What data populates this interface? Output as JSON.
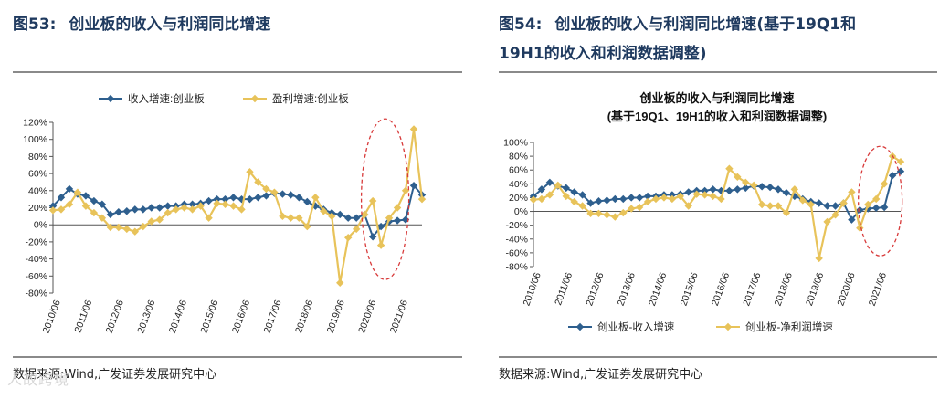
{
  "left": {
    "fig_label": "图53:",
    "fig_title": "创业板的收入与利润同比增速",
    "source": "数据来源:Wind,广发证券发展研究中心"
  },
  "right": {
    "fig_label": "图54:",
    "fig_title_line1": "创业板的收入与利润同比增速(基于19Q1和",
    "fig_title_line2": "19H1的收入和利润数据调整)",
    "source": "数据来源:Wind,广发证券发展研究中心"
  },
  "watermark": "人故跨境",
  "colors": {
    "revenue": "#2e5f8e",
    "profit": "#e8c35a",
    "annotation": "#d83a3a"
  },
  "chart_data": [
    {
      "type": "line",
      "title": "",
      "legend": [
        "收入增速:创业板",
        "盈利增速:创业板"
      ],
      "x_labels": [
        "2010/06",
        "2011/06",
        "2012/06",
        "2013/06",
        "2014/06",
        "2015/06",
        "2016/06",
        "2017/06",
        "2018/06",
        "2019/06",
        "2020/06",
        "2021/06"
      ],
      "y_ticks": [
        "120%",
        "100%",
        "80%",
        "60%",
        "40%",
        "20%",
        "0%",
        "-20%",
        "-40%",
        "-60%",
        "-80%"
      ],
      "ylim": [
        -80,
        120
      ],
      "x_range": [
        0,
        45
      ],
      "series": [
        {
          "name": "收入增速:创业板",
          "x": [
            0,
            1,
            2,
            3,
            4,
            5,
            6,
            7,
            8,
            9,
            10,
            11,
            12,
            13,
            14,
            15,
            16,
            17,
            18,
            19,
            20,
            21,
            22,
            23,
            24,
            25,
            26,
            27,
            28,
            29,
            30,
            31,
            32,
            33,
            34,
            35,
            36,
            37,
            38,
            39,
            40,
            41,
            42,
            43,
            44,
            45
          ],
          "values": [
            22,
            32,
            42,
            36,
            34,
            28,
            24,
            12,
            15,
            16,
            18,
            18,
            20,
            20,
            22,
            22,
            24,
            24,
            25,
            28,
            30,
            30,
            32,
            30,
            30,
            32,
            34,
            37,
            36,
            35,
            32,
            27,
            22,
            18,
            14,
            12,
            8,
            8,
            12,
            -14,
            -2,
            4,
            5,
            6,
            46,
            35
          ]
        },
        {
          "name": "盈利增速:创业板",
          "x": [
            0,
            1,
            2,
            3,
            4,
            5,
            6,
            7,
            8,
            9,
            10,
            11,
            12,
            13,
            14,
            15,
            16,
            17,
            18,
            19,
            20,
            21,
            22,
            23,
            24,
            25,
            26,
            27,
            28,
            29,
            30,
            31,
            32,
            33,
            34,
            35,
            36,
            37,
            38,
            39,
            40,
            41,
            42,
            43,
            44,
            45
          ],
          "values": [
            17,
            18,
            24,
            38,
            22,
            14,
            8,
            -3,
            -3,
            -5,
            -8,
            -2,
            4,
            6,
            14,
            18,
            20,
            18,
            22,
            8,
            25,
            24,
            22,
            18,
            62,
            50,
            42,
            38,
            10,
            8,
            8,
            -2,
            32,
            16,
            10,
            -68,
            -15,
            -5,
            12,
            28,
            -24,
            8,
            20,
            40,
            112,
            30
          ]
        }
      ]
    },
    {
      "type": "line",
      "title": "创业板的收入与利润同比增速",
      "subtitle": "(基于19Q1、19H1的收入和利润数据调整)",
      "legend": [
        "创业板-收入增速",
        "创业板-净利润增速"
      ],
      "x_labels": [
        "2010/06",
        "2011/06",
        "2012/06",
        "2013/06",
        "2014/06",
        "2015/06",
        "2016/06",
        "2017/06",
        "2018/06",
        "2019/06",
        "2020/06",
        "2021/06"
      ],
      "y_ticks": [
        "100%",
        "80%",
        "60%",
        "40%",
        "20%",
        "0%",
        "-20%",
        "-40%",
        "-60%",
        "-80%"
      ],
      "ylim": [
        -80,
        100
      ],
      "x_range": [
        0,
        45
      ],
      "series": [
        {
          "name": "创业板-收入增速",
          "x": [
            0,
            1,
            2,
            3,
            4,
            5,
            6,
            7,
            8,
            9,
            10,
            11,
            12,
            13,
            14,
            15,
            16,
            17,
            18,
            19,
            20,
            21,
            22,
            23,
            24,
            25,
            26,
            27,
            28,
            29,
            30,
            31,
            32,
            33,
            34,
            35,
            36,
            37,
            38,
            39,
            40,
            41,
            42,
            43,
            44,
            45
          ],
          "values": [
            22,
            32,
            42,
            37,
            34,
            28,
            24,
            12,
            15,
            16,
            18,
            18,
            20,
            20,
            22,
            22,
            24,
            24,
            25,
            28,
            30,
            30,
            32,
            30,
            30,
            32,
            34,
            37,
            36,
            35,
            32,
            27,
            22,
            18,
            14,
            12,
            8,
            8,
            12,
            -12,
            2,
            4,
            5,
            6,
            52,
            58
          ]
        },
        {
          "name": "创业板-净利润增速",
          "x": [
            0,
            1,
            2,
            3,
            4,
            5,
            6,
            7,
            8,
            9,
            10,
            11,
            12,
            13,
            14,
            15,
            16,
            17,
            18,
            19,
            20,
            21,
            22,
            23,
            24,
            25,
            26,
            27,
            28,
            29,
            30,
            31,
            32,
            33,
            34,
            35,
            36,
            37,
            38,
            39,
            40,
            41,
            42,
            43,
            44,
            45
          ],
          "values": [
            17,
            18,
            24,
            38,
            22,
            14,
            8,
            -3,
            -3,
            -5,
            -8,
            -2,
            4,
            6,
            14,
            18,
            20,
            18,
            22,
            8,
            25,
            24,
            22,
            18,
            62,
            50,
            42,
            38,
            10,
            8,
            8,
            -2,
            32,
            16,
            10,
            -68,
            -15,
            -5,
            12,
            28,
            -24,
            10,
            18,
            40,
            80,
            72
          ]
        }
      ]
    }
  ]
}
